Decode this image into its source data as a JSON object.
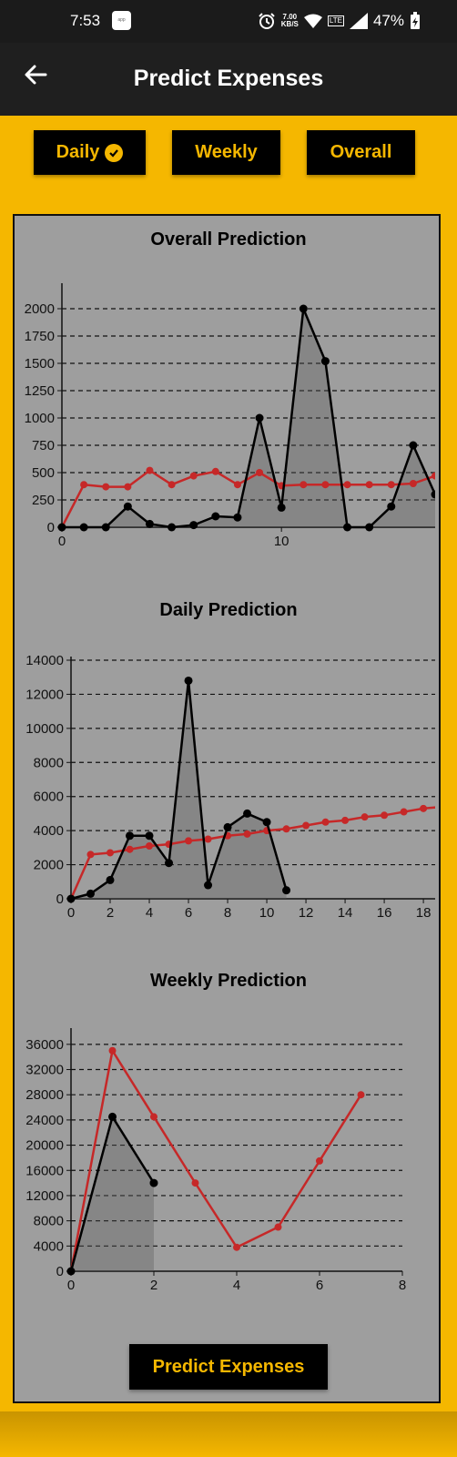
{
  "status_bar": {
    "time": "7:53",
    "speed_value": "7.00",
    "speed_unit": "KB/S",
    "network": "LTE",
    "battery": "47%",
    "icons": [
      "alarm-icon",
      "wifi-icon",
      "signal-icon",
      "battery-charging-icon"
    ]
  },
  "app_bar": {
    "title": "Predict Expenses",
    "back_icon": "arrow-left-icon"
  },
  "tabs": [
    {
      "label": "Daily",
      "selected": true
    },
    {
      "label": "Weekly",
      "selected": false
    },
    {
      "label": "Overall",
      "selected": false
    }
  ],
  "predict_button": {
    "label": "Predict Expenses"
  },
  "colors": {
    "accent": "#f5b700",
    "actual": "#000000",
    "prediction": "#c62828",
    "panel": "#9e9e9e"
  },
  "chart_data": [
    {
      "type": "line",
      "title": "Overall Prediction",
      "xlim": [
        0,
        17
      ],
      "ylim": [
        0,
        2200
      ],
      "xticks": [
        0,
        10
      ],
      "yticks": [
        0,
        250,
        500,
        750,
        1000,
        1250,
        1500,
        1750,
        2000
      ],
      "grid": true,
      "series": [
        {
          "role": "actual",
          "x": [
            0,
            1,
            2,
            3,
            4,
            5,
            6,
            7,
            8,
            9,
            10,
            11,
            12,
            13,
            14,
            15,
            16,
            17
          ],
          "values": [
            0,
            0,
            0,
            190,
            30,
            0,
            20,
            100,
            90,
            1000,
            180,
            2000,
            1520,
            0,
            0,
            190,
            750,
            300
          ]
        },
        {
          "role": "prediction",
          "x": [
            0,
            1,
            2,
            3,
            4,
            5,
            6,
            7,
            8,
            9,
            10,
            11,
            12,
            13,
            14,
            15,
            16,
            17
          ],
          "values": [
            0,
            390,
            370,
            370,
            520,
            390,
            470,
            510,
            390,
            500,
            380,
            390,
            390,
            390,
            390,
            390,
            400,
            470
          ]
        }
      ]
    },
    {
      "type": "line",
      "title": "Daily Prediction",
      "xlim": [
        0,
        18.6
      ],
      "ylim": [
        0,
        14000
      ],
      "xticks": [
        0,
        2,
        4,
        6,
        8,
        10,
        12,
        14,
        16,
        18
      ],
      "yticks": [
        0,
        2000,
        4000,
        6000,
        8000,
        10000,
        12000,
        14000
      ],
      "grid": true,
      "series": [
        {
          "role": "actual",
          "x": [
            0,
            1,
            2,
            3,
            4,
            5,
            6,
            7,
            8,
            9,
            10,
            11
          ],
          "values": [
            0,
            300,
            1100,
            3700,
            3700,
            2100,
            12800,
            800,
            4200,
            5000,
            4500,
            500
          ]
        },
        {
          "role": "prediction",
          "x": [
            0,
            1,
            2,
            3,
            4,
            5,
            6,
            7,
            8,
            9,
            10,
            11,
            12,
            13,
            14,
            15,
            16,
            17,
            18,
            19
          ],
          "values": [
            0,
            2600,
            2700,
            2900,
            3100,
            3200,
            3400,
            3500,
            3700,
            3800,
            4000,
            4100,
            4300,
            4500,
            4600,
            4800,
            4900,
            5100,
            5300,
            5400
          ]
        }
      ]
    },
    {
      "type": "line",
      "title": "Weekly Prediction",
      "xlim": [
        0,
        8
      ],
      "ylim": [
        0,
        38000
      ],
      "xticks": [
        0,
        2,
        4,
        6,
        8
      ],
      "yticks": [
        0,
        4000,
        8000,
        12000,
        16000,
        20000,
        24000,
        28000,
        32000,
        36000
      ],
      "grid": true,
      "series": [
        {
          "role": "actual",
          "x": [
            0,
            1,
            2
          ],
          "values": [
            0,
            24500,
            14000
          ]
        },
        {
          "role": "prediction",
          "x": [
            0,
            1,
            2,
            3,
            4,
            5,
            6,
            7
          ],
          "values": [
            0,
            35000,
            24500,
            14000,
            3800,
            7000,
            17500,
            28000
          ]
        }
      ]
    }
  ]
}
